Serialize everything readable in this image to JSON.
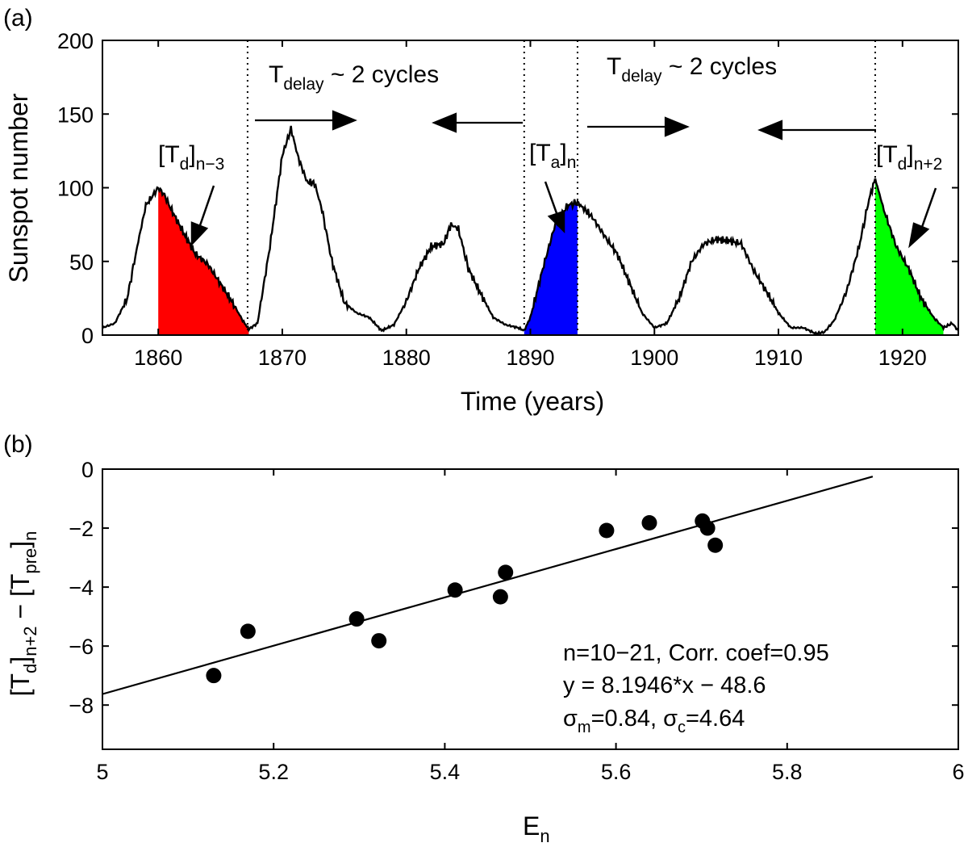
{
  "chart_data": [
    {
      "type": "line",
      "panel_label": "(a)",
      "xlabel": "Time (years)",
      "ylabel": "Sunspot number",
      "xlim": [
        1855.5,
        1924.5
      ],
      "ylim": [
        0,
        200
      ],
      "xticks": [
        1860,
        1870,
        1880,
        1890,
        1900,
        1910,
        1920
      ],
      "yticks": [
        0,
        50,
        100,
        150,
        200
      ],
      "series": [
        {
          "name": "Sunspot number",
          "x": [
            1855.5,
            1856.5,
            1857.5,
            1858.3,
            1859.0,
            1859.5,
            1860.0,
            1860.5,
            1861.0,
            1862.0,
            1863.0,
            1864.0,
            1865.0,
            1866.0,
            1866.8,
            1867.3,
            1868.0,
            1869.0,
            1870.0,
            1870.7,
            1871.3,
            1872.0,
            1872.6,
            1873.2,
            1874.0,
            1875.0,
            1876.0,
            1877.0,
            1878.0,
            1879.0,
            1880.0,
            1881.0,
            1882.0,
            1883.0,
            1883.6,
            1884.2,
            1885.0,
            1886.0,
            1887.0,
            1888.0,
            1889.0,
            1889.5,
            1890.0,
            1891.0,
            1892.0,
            1893.0,
            1893.8,
            1895.0,
            1896.0,
            1897.0,
            1898.0,
            1899.0,
            1900.0,
            1901.0,
            1902.0,
            1903.0,
            1904.0,
            1905.0,
            1906.0,
            1907.0,
            1908.0,
            1909.0,
            1910.0,
            1911.0,
            1912.0,
            1913.0,
            1913.7,
            1914.5,
            1915.5,
            1916.5,
            1917.3,
            1917.8,
            1918.5,
            1919.5,
            1920.5,
            1921.5,
            1922.5,
            1923.3,
            1924.0,
            1924.5
          ],
          "y": [
            5,
            8,
            25,
            60,
            88,
            94,
            100,
            95,
            86,
            70,
            55,
            48,
            35,
            22,
            10,
            4,
            8,
            60,
            122,
            140,
            120,
            104,
            103,
            85,
            50,
            22,
            15,
            12,
            3,
            7,
            23,
            45,
            60,
            62,
            75,
            72,
            45,
            28,
            12,
            7,
            5,
            3,
            12,
            45,
            75,
            88,
            90,
            80,
            67,
            55,
            35,
            15,
            5,
            8,
            25,
            50,
            62,
            65,
            64,
            62,
            44,
            30,
            15,
            5,
            5,
            1,
            2,
            10,
            30,
            60,
            92,
            106,
            85,
            60,
            45,
            25,
            12,
            5,
            8,
            3
          ]
        }
      ],
      "shaded_regions": [
        {
          "label_main": "[T",
          "label_sub1": "d",
          "label_mid": "]",
          "label_sub2": "n−3",
          "color": "#ff0000",
          "from": 1860.0,
          "to": 1867.3
        },
        {
          "label_main": "[T",
          "label_sub1": "a",
          "label_mid": "]",
          "label_sub2": "n",
          "color": "#0000ff",
          "from": 1889.5,
          "to": 1893.8
        },
        {
          "label_main": "[T",
          "label_sub1": "d",
          "label_mid": "]",
          "label_sub2": "n+2",
          "color": "#00ff00",
          "from": 1917.8,
          "to": 1923.3
        }
      ],
      "vlines": [
        1867.2,
        1889.5,
        1893.8,
        1917.8
      ],
      "annotations": [
        {
          "main": "T",
          "sub": "delay",
          "rest": " ~ 2 cycles"
        },
        {
          "main": "T",
          "sub": "delay",
          "rest": " ~ 2 cycles"
        }
      ]
    },
    {
      "type": "scatter",
      "panel_label": "(b)",
      "xlabel_main": "E",
      "xlabel_sub": "n",
      "ylabel_parts": [
        "[T",
        "d",
        "]",
        "n+2",
        " − [T",
        "pre",
        "]",
        "n"
      ],
      "xlim": [
        5,
        6
      ],
      "ylim": [
        -9.5,
        0
      ],
      "xticks": [
        5,
        5.2,
        5.4,
        5.6,
        5.8,
        6
      ],
      "xtick_labels": [
        "5",
        "5.2",
        "5.4",
        "5.6",
        "5.8",
        "6"
      ],
      "yticks": [
        0,
        -2,
        -4,
        -6,
        -8
      ],
      "ytick_labels": [
        "0",
        "−2",
        "−4",
        "−6",
        "−8"
      ],
      "points": {
        "x": [
          5.13,
          5.17,
          5.297,
          5.323,
          5.412,
          5.465,
          5.471,
          5.589,
          5.639,
          5.701,
          5.707,
          5.716
        ],
        "y": [
          -7.0,
          -5.5,
          -5.08,
          -5.82,
          -4.1,
          -4.33,
          -3.5,
          -2.08,
          -1.82,
          -1.76,
          -2.0,
          -2.58
        ]
      },
      "fit": {
        "slope": 8.1946,
        "intercept": -48.6,
        "x_range": [
          5,
          5.9
        ]
      },
      "stats": {
        "line1": "n=10−21, Corr. coef=0.95",
        "line2": "y = 8.1946*x − 48.6",
        "line3_sym1": "σ",
        "line3_sub1": "m",
        "line3_val1": "=0.84, ",
        "line3_sym2": "σ",
        "line3_sub2": "c",
        "line3_val2": "=4.64"
      }
    }
  ]
}
